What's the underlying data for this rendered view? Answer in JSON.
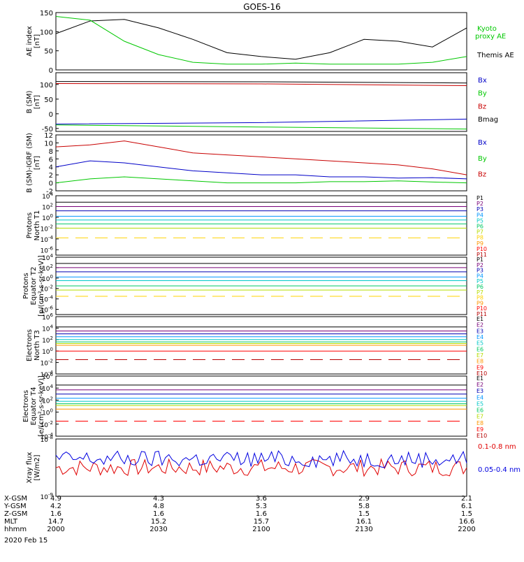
{
  "title": "GOES-16",
  "date": "2020 Feb 15",
  "time_axis": {
    "ticks": [
      "2000",
      "2030",
      "2100",
      "2130",
      "2200"
    ],
    "rows": [
      {
        "label": "X-GSM",
        "values": [
          "4.9",
          "4.3",
          "3.6",
          "2.9",
          "2.1"
        ]
      },
      {
        "label": "Y-GSM",
        "values": [
          "4.2",
          "4.8",
          "5.3",
          "5.8",
          "6.1"
        ]
      },
      {
        "label": "Z-GSM",
        "values": [
          "1.6",
          "1.6",
          "1.6",
          "1.5",
          "1.5"
        ]
      },
      {
        "label": "MLT",
        "values": [
          "14.7",
          "15.2",
          "15.7",
          "16.1",
          "16.6"
        ]
      },
      {
        "label": "hhmm",
        "values": [
          "2000",
          "2030",
          "2100",
          "2130",
          "2200"
        ]
      }
    ]
  },
  "chart_data": [
    {
      "type": "line",
      "ylabel": [
        "AE index",
        "[nT]"
      ],
      "ylim": [
        0,
        150
      ],
      "yticks": [
        "0",
        "50",
        "100",
        "150"
      ],
      "x": [
        0,
        10,
        20,
        30,
        40,
        50,
        60,
        70,
        80,
        90,
        100,
        110,
        120
      ],
      "series": [
        {
          "name": "Themis AE",
          "color": "#000000",
          "values": [
            95,
            128,
            132,
            110,
            80,
            45,
            35,
            28,
            45,
            80,
            75,
            60,
            110
          ]
        },
        {
          "name": "Kyoto proxy AE",
          "color": "#00c800",
          "values": [
            140,
            130,
            75,
            40,
            20,
            15,
            15,
            18,
            15,
            15,
            15,
            20,
            35
          ]
        }
      ]
    },
    {
      "type": "line",
      "ylabel": [
        "B (SM)",
        "[nT]"
      ],
      "ylim": [
        -60,
        140
      ],
      "yticks": [
        "-50",
        "0",
        "50",
        "100"
      ],
      "x": [
        0,
        60,
        120
      ],
      "series": [
        {
          "name": "Bx",
          "color": "#0000c8",
          "values": [
            -35,
            -30,
            -18
          ]
        },
        {
          "name": "By",
          "color": "#00c800",
          "values": [
            -38,
            -45,
            -52
          ]
        },
        {
          "name": "Bz",
          "color": "#c80000",
          "values": [
            103,
            102,
            96
          ]
        },
        {
          "name": "Bmag",
          "color": "#000000",
          "values": [
            110,
            109,
            105
          ]
        }
      ]
    },
    {
      "type": "line",
      "ylabel": [
        "B (SM)-IGRF (SM)",
        "[nT]"
      ],
      "ylim": [
        -2,
        12
      ],
      "yticks": [
        "-2",
        "0",
        "2",
        "4",
        "6",
        "8",
        "10",
        "12"
      ],
      "x": [
        0,
        10,
        20,
        30,
        40,
        50,
        60,
        70,
        80,
        90,
        100,
        110,
        120
      ],
      "series": [
        {
          "name": "Bx",
          "color": "#0000c8",
          "values": [
            4,
            5.5,
            5,
            4,
            3,
            2.5,
            2,
            2,
            1.5,
            1.5,
            1.2,
            1.3,
            1
          ]
        },
        {
          "name": "By",
          "color": "#00c800",
          "values": [
            0,
            1,
            1.5,
            1,
            0.5,
            0,
            0,
            0,
            0.3,
            0.3,
            0.5,
            0.2,
            0
          ]
        },
        {
          "name": "Bz",
          "color": "#c80000",
          "values": [
            9,
            9.5,
            10.5,
            9,
            7.5,
            7,
            6.5,
            6,
            5.5,
            5,
            4.5,
            3.5,
            2
          ]
        }
      ]
    },
    {
      "type": "line",
      "ylabel": [
        "Protons",
        "North T1"
      ],
      "log": true,
      "ylim_exp": [
        -7,
        4
      ],
      "ytick_exps": [
        4,
        2,
        0,
        -2,
        -4,
        -6
      ],
      "x": [
        0,
        120
      ],
      "series": [
        {
          "name": "P1",
          "color": "#000000",
          "exp": 2.8
        },
        {
          "name": "P2",
          "color": "#780078",
          "exp": 2
        },
        {
          "name": "P3",
          "color": "#0000b4",
          "exp": 1.2
        },
        {
          "name": "P4",
          "color": "#0096ff",
          "exp": 0.2
        },
        {
          "name": "P5",
          "color": "#00c8c8",
          "exp": -0.5
        },
        {
          "name": "P6",
          "color": "#00c864",
          "exp": -1.2
        },
        {
          "name": "P7",
          "color": "#b4dc00",
          "exp": -2
        },
        {
          "name": "P8",
          "color": "#ffd200",
          "exp": -3.8,
          "dashed": true
        },
        {
          "name": "P9",
          "color": "#ff9600",
          "exp": null
        },
        {
          "name": "P10",
          "color": "#ff0000",
          "exp": null
        },
        {
          "name": "P11",
          "color": "#b40000",
          "exp": null
        }
      ]
    },
    {
      "type": "line",
      "ylabel": [
        "Protons",
        "Equator T2",
        "[p/(cm²-s-sr-keV)]"
      ],
      "log": true,
      "ylim_exp": [
        -7,
        4
      ],
      "ytick_exps": [
        4,
        2,
        0,
        -2,
        -4,
        -6
      ],
      "x": [
        0,
        120
      ],
      "series": [
        {
          "name": "P1",
          "color": "#000000",
          "exp": 2.8
        },
        {
          "name": "P2",
          "color": "#780078",
          "exp": 2
        },
        {
          "name": "P3",
          "color": "#0000b4",
          "exp": 1.2
        },
        {
          "name": "P4",
          "color": "#0096ff",
          "exp": 0.2
        },
        {
          "name": "P5",
          "color": "#00c8c8",
          "exp": -0.5
        },
        {
          "name": "P6",
          "color": "#00c864",
          "exp": -1.5
        },
        {
          "name": "P7",
          "color": "#b4dc00",
          "exp": -2.3
        },
        {
          "name": "P8",
          "color": "#ffd200",
          "exp": -3.5,
          "dashed": true
        },
        {
          "name": "P9",
          "color": "#ff9600",
          "exp": null
        },
        {
          "name": "P10",
          "color": "#ff0000",
          "exp": null
        },
        {
          "name": "P11",
          "color": "#b40000",
          "exp": null
        }
      ]
    },
    {
      "type": "line",
      "ylabel": [
        "Electrons",
        "North T3"
      ],
      "log": true,
      "ylim_exp": [
        -4,
        6
      ],
      "ytick_exps": [
        6,
        4,
        2,
        0,
        -2,
        -4
      ],
      "x": [
        0,
        120
      ],
      "series": [
        {
          "name": "E1",
          "color": "#000000",
          "exp": 4.2
        },
        {
          "name": "E2",
          "color": "#780078",
          "exp": 3.5
        },
        {
          "name": "E3",
          "color": "#0000b4",
          "exp": 3
        },
        {
          "name": "E4",
          "color": "#0096ff",
          "exp": 2.5
        },
        {
          "name": "E5",
          "color": "#00c8c8",
          "exp": 2
        },
        {
          "name": "E6",
          "color": "#00c864",
          "exp": 1.6
        },
        {
          "name": "E7",
          "color": "#b4dc00",
          "exp": 1.3
        },
        {
          "name": "E8",
          "color": "#ff9600",
          "exp": 1
        },
        {
          "name": "E9",
          "color": "#ff0000",
          "exp": 0
        },
        {
          "name": "E10",
          "color": "#b40000",
          "exp": -1.5,
          "dashed": true
        }
      ]
    },
    {
      "type": "line",
      "ylabel": [
        "Electrons",
        "Equator T4",
        "[e/(cm²-s-sr-keV)]"
      ],
      "log": true,
      "ylim_exp": [
        -4,
        6
      ],
      "ytick_exps": [
        6,
        4,
        2,
        0,
        -2,
        -4
      ],
      "x": [
        0,
        120
      ],
      "series": [
        {
          "name": "E1",
          "color": "#000000",
          "exp": 4.5
        },
        {
          "name": "E2",
          "color": "#780078",
          "exp": 3.7
        },
        {
          "name": "E3",
          "color": "#0000b4",
          "exp": 3
        },
        {
          "name": "E4",
          "color": "#0096ff",
          "exp": 2.3
        },
        {
          "name": "E5",
          "color": "#00c8c8",
          "exp": 1.8
        },
        {
          "name": "E6",
          "color": "#00c864",
          "exp": 1.4
        },
        {
          "name": "E7",
          "color": "#b4dc00",
          "exp": 1.1
        },
        {
          "name": "E8",
          "color": "#ff9600",
          "exp": 0.5
        },
        {
          "name": "E9",
          "color": "#ff0000",
          "exp": -1.5,
          "dashed": true
        },
        {
          "name": "E10",
          "color": "#b40000",
          "exp": null
        }
      ]
    },
    {
      "type": "line",
      "ylabel": [
        "Xray flux",
        "[W/m2]"
      ],
      "log": true,
      "ylim_exp": [
        -9,
        -8
      ],
      "ytick_exps": [
        -8,
        -9
      ],
      "x": [
        0,
        120
      ],
      "series": [
        {
          "name": "0.1-0.8 nm",
          "color": "#e00000",
          "exp": -8.5,
          "noisy": true
        },
        {
          "name": "0.05-0.4 nm",
          "color": "#0000e0",
          "exp": -8.35,
          "noisy": true
        }
      ]
    }
  ]
}
